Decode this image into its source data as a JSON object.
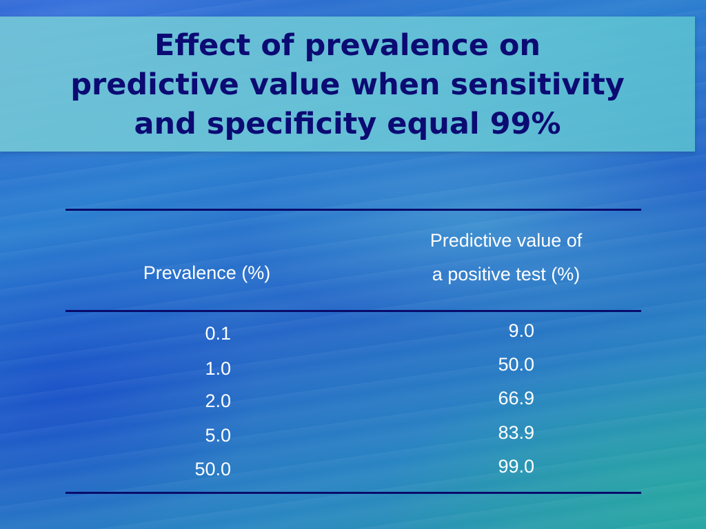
{
  "slide": {
    "title_lines": [
      "Effect of prevalence on",
      "predictive value when sensitivity",
      "and specificity equal 99%"
    ]
  },
  "table": {
    "headers": {
      "prevalence": "Prevalence (%)",
      "ppv_line1": "Predictive value of",
      "ppv_line2": "a positive test (%)"
    },
    "rows": [
      {
        "prevalence": "0.1",
        "ppv": "9.0"
      },
      {
        "prevalence": "1.0",
        "ppv": "50.0"
      },
      {
        "prevalence": "2.0",
        "ppv": "66.9"
      },
      {
        "prevalence": "5.0",
        "ppv": "83.9"
      },
      {
        "prevalence": "50.0",
        "ppv": "99.0"
      }
    ]
  },
  "colors": {
    "title_text": "#0b0b73",
    "table_text": "#ffffff",
    "rules": "#080c6a",
    "title_box": "#78cdd7"
  }
}
